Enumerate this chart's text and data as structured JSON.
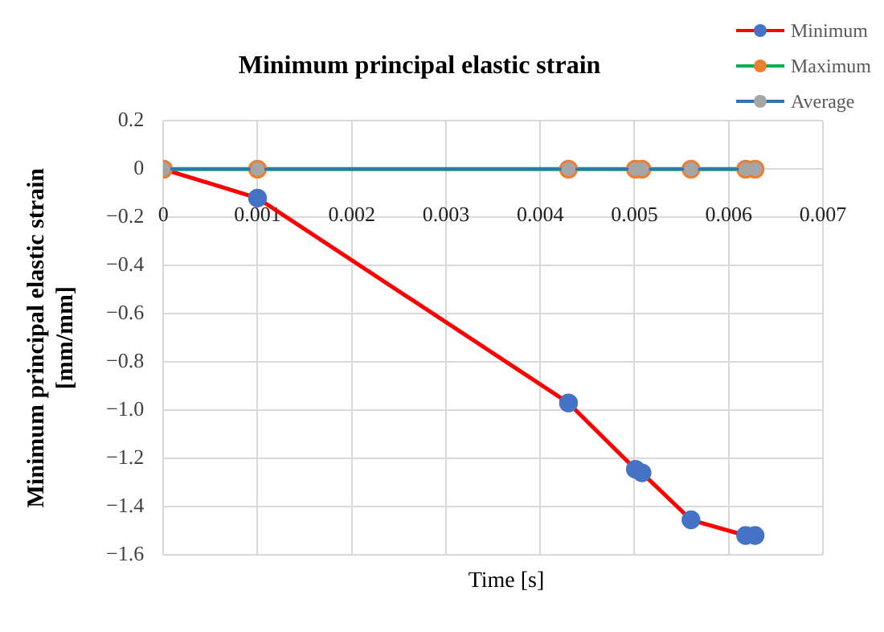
{
  "chart_data": {
    "type": "line",
    "title": "Minimum principal elastic strain",
    "xlabel": "Time [s]",
    "ylabel": "Minimum principal elastic strain [mm/mm]",
    "x": [
      0,
      0.001,
      0.0043,
      0.00501,
      0.00508,
      0.0056,
      0.00618,
      0.00628
    ],
    "series": [
      {
        "name": "Minimum",
        "color": "#ff0000",
        "colors": [
          "#4472c4",
          "#4472c4",
          "#4472c4",
          "#4472c4",
          "#4472c4",
          "#4472c4",
          "#4472c4",
          "#4472c4"
        ],
        "values": [
          0,
          -0.12,
          -0.97,
          -1.245,
          -1.26,
          -1.455,
          -1.52,
          -1.52
        ]
      },
      {
        "name": "Maximum",
        "color": "#00b050",
        "colors": [
          "#ed7d31",
          "#ed7d31",
          "#ed7d31",
          "#ed7d31",
          "#ed7d31",
          "#ed7d31",
          "#ed7d31",
          "#ed7d31"
        ],
        "values": [
          0,
          0,
          0,
          0,
          0,
          0,
          0,
          0
        ]
      },
      {
        "name": "Average",
        "color": "#2e75b6",
        "colors": [
          "#a5a5a5",
          "#a5a5a5",
          "#a5a5a5",
          "#a5a5a5",
          "#a5a5a5",
          "#a5a5a5",
          "#a5a5a5",
          "#a5a5a5"
        ],
        "values": [
          0,
          0,
          0,
          0,
          0,
          0,
          0,
          0
        ]
      }
    ],
    "xlim": [
      0,
      0.007
    ],
    "xticks": [
      0,
      0.001,
      0.002,
      0.003,
      0.004,
      0.005,
      0.006,
      0.007
    ],
    "ylim": [
      -1.6,
      0.2
    ],
    "yticks": [
      0.2,
      0,
      {
        "value": -0.2,
        "label": "−0.2"
      },
      {
        "value": -0.4,
        "label": "−0.4"
      },
      {
        "value": -0.6,
        "label": "−0.6"
      },
      {
        "value": -0.8,
        "label": "−0.8"
      },
      {
        "value": -1,
        "label": "−1.0"
      },
      {
        "value": -1.2,
        "label": "−1.2"
      },
      {
        "value": -1.4,
        "label": "−1.4"
      },
      {
        "value": -1.6,
        "label": "−1.6"
      }
    ],
    "grid": true,
    "legend": "top right",
    "marker": "circle",
    "line_style": "solid"
  }
}
